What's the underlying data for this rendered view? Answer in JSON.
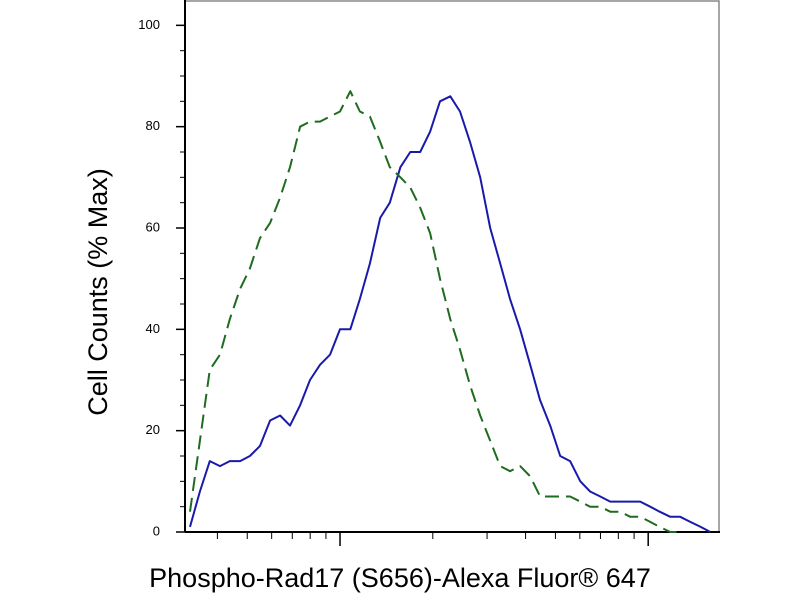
{
  "chart_data": {
    "type": "line",
    "ylabel": "Cell Counts (% Max)",
    "xlabel": "Phospho-Rad17 (S656)-Alexa Fluor® 647",
    "xlog": true,
    "xlim": [
      3.14,
      171
    ],
    "xticks": [
      10,
      100
    ],
    "ylim": [
      0,
      105
    ],
    "yticks": [
      0,
      20,
      40,
      60,
      80,
      100
    ],
    "x": [
      3.26,
      3.51,
      3.78,
      4.08,
      4.39,
      4.74,
      5.1,
      5.5,
      5.93,
      6.39,
      6.88,
      7.42,
      7.99,
      8.61,
      9.28,
      10.0,
      10.8,
      11.6,
      12.5,
      13.5,
      14.5,
      15.7,
      16.9,
      18.2,
      19.6,
      21.1,
      22.8,
      24.5,
      26.4,
      28.5,
      30.7,
      33.1,
      35.6,
      38.4,
      41.4,
      44.6,
      48.1,
      51.8,
      55.8,
      60.2,
      64.8,
      69.9,
      75.3,
      81.1,
      87.4,
      94.2,
      101.5,
      109,
      118,
      127,
      137,
      148,
      159
    ],
    "series": [
      {
        "color": "#1a1aaa",
        "dash": false,
        "values": [
          1,
          8,
          14,
          13,
          14,
          14,
          15,
          17,
          22,
          23,
          21,
          25,
          30,
          33,
          35,
          40,
          40,
          46,
          53,
          62,
          65,
          72,
          75,
          75,
          79,
          85,
          86,
          83,
          77,
          70,
          60,
          53,
          46,
          40,
          33,
          26,
          21,
          15,
          14,
          10,
          8,
          7,
          6,
          6,
          6,
          6,
          5,
          4,
          3,
          3,
          2,
          1,
          0
        ]
      },
      {
        "color": "#1f6b1f",
        "dash": true,
        "values": [
          4,
          18,
          32,
          35,
          42,
          48,
          52,
          58,
          61,
          66,
          72,
          80,
          81,
          81,
          82,
          83,
          87,
          83,
          82,
          77,
          72,
          70,
          68,
          64,
          59,
          50,
          42,
          36,
          29,
          23,
          18,
          13,
          12,
          13,
          11,
          7,
          7,
          7,
          7,
          6,
          5,
          5,
          4,
          4,
          3,
          3,
          2,
          1,
          0,
          0,
          null,
          null,
          null
        ]
      }
    ]
  }
}
